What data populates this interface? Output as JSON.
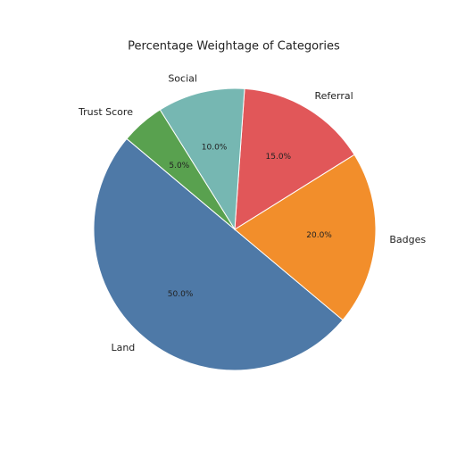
{
  "chart_data": {
    "type": "pie",
    "title": "Percentage Weightage of Categories",
    "categories": [
      "Land",
      "Badges",
      "Referral",
      "Social",
      "Trust Score"
    ],
    "values": [
      50,
      20,
      15,
      10,
      5
    ],
    "value_labels": [
      "50.0%",
      "20.0%",
      "15.0%",
      "10.0%",
      "5.0%"
    ],
    "colors": [
      "#4e79a7",
      "#f28e2b",
      "#e15759",
      "#76b7b2",
      "#59a14f"
    ]
  }
}
